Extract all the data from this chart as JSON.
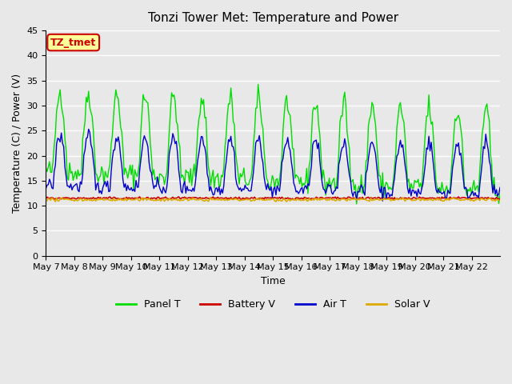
{
  "title": "Tonzi Tower Met: Temperature and Power",
  "xlabel": "Time",
  "ylabel": "Temperature (C) / Power (V)",
  "ylim": [
    0,
    45
  ],
  "yticks": [
    0,
    5,
    10,
    15,
    20,
    25,
    30,
    35,
    40,
    45
  ],
  "xtick_labels": [
    "May 7",
    "May 8",
    "May 9",
    "May 10",
    "May 11",
    "May 12",
    "May 13",
    "May 14",
    "May 15",
    "May 16",
    "May 17",
    "May 18",
    "May 19",
    "May 20",
    "May 21",
    "May 22"
  ],
  "n_days": 16,
  "colors": {
    "panel_t": "#00dd00",
    "battery_v": "#cc0000",
    "air_t": "#0000cc",
    "solar_v": "#ddaa00"
  },
  "bg_color": "#e8e8e8",
  "annotation_text": "TZ_tmet",
  "annotation_bg": "#ffff99",
  "annotation_border": "#cc0000"
}
